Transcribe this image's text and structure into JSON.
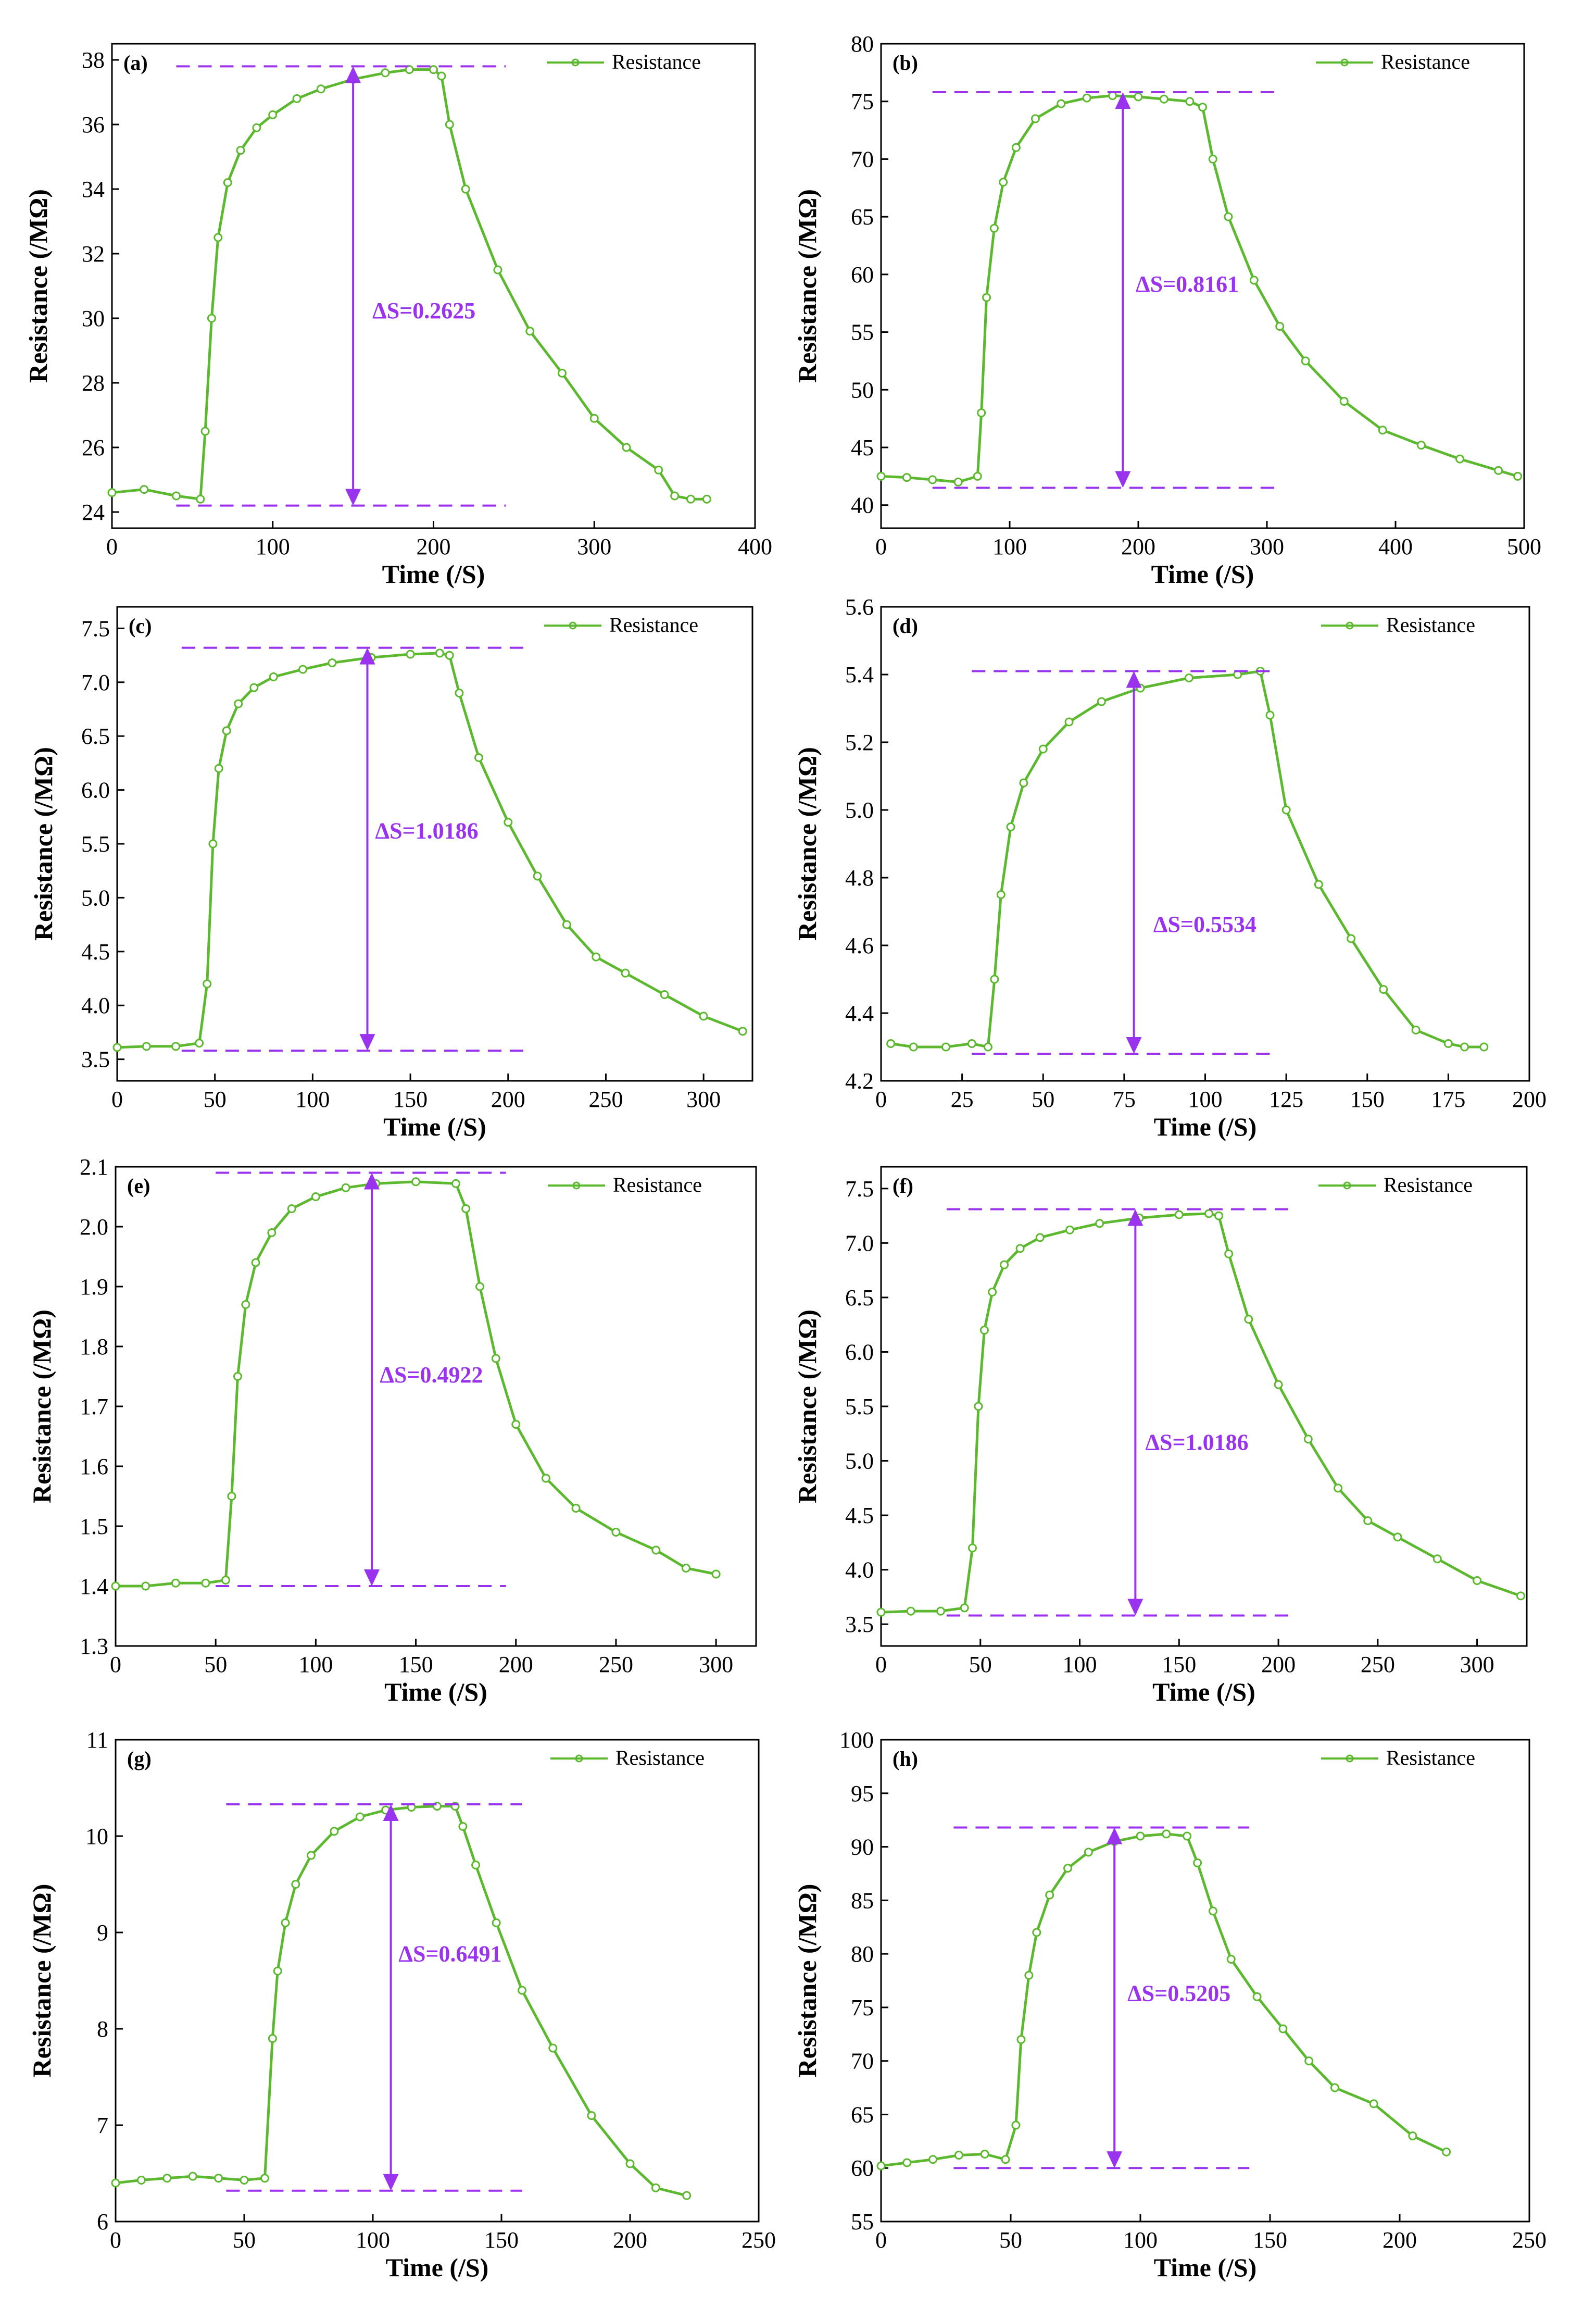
{
  "colors": {
    "series": "#5cb82e",
    "annotation": "#9a33ee",
    "axis": "#000000"
  },
  "legend_label": "Resistance",
  "chart_data": [
    {
      "type": "line",
      "panel_label": "(a)",
      "xlabel": "Time (/S)",
      "ylabel": "Resistance (/MΩ)",
      "xlim": [
        0,
        400
      ],
      "ylim": [
        23.5,
        38.5
      ],
      "xticks": [
        0,
        100,
        200,
        300,
        400
      ],
      "xtick_labels": [
        "0",
        "100",
        "200",
        "300",
        "400"
      ],
      "yticks": [
        24,
        26,
        28,
        30,
        32,
        34,
        36,
        38
      ],
      "ytick_labels": [
        "24",
        "26",
        "28",
        "30",
        "32",
        "34",
        "36",
        "38"
      ],
      "series": [
        {
          "name": "Resistance",
          "x": [
            0,
            20,
            40,
            55,
            58,
            62,
            66,
            72,
            80,
            90,
            100,
            115,
            130,
            150,
            170,
            185,
            200,
            205,
            210,
            220,
            240,
            260,
            280,
            300,
            320,
            340,
            350,
            360,
            370
          ],
          "y": [
            24.6,
            24.7,
            24.5,
            24.4,
            26.5,
            30.0,
            32.5,
            34.2,
            35.2,
            35.9,
            36.3,
            36.8,
            37.1,
            37.4,
            37.6,
            37.7,
            37.7,
            37.5,
            36.0,
            34.0,
            31.5,
            29.6,
            28.3,
            26.9,
            26.0,
            25.3,
            24.5,
            24.4,
            24.4
          ]
        }
      ],
      "annotation": {
        "label": "ΔS=0.2625",
        "upper_y": 37.8,
        "lower_y": 24.2,
        "arrow_x": 150,
        "dash_x": [
          40,
          245
        ],
        "label_x": 162,
        "label_y": 30.0
      }
    },
    {
      "type": "line",
      "panel_label": "(b)",
      "xlabel": "Time (/S)",
      "ylabel": "Resistance (/MΩ)",
      "xlim": [
        0,
        500
      ],
      "ylim": [
        38,
        80
      ],
      "xticks": [
        0,
        100,
        200,
        300,
        400,
        500
      ],
      "xtick_labels": [
        "0",
        "100",
        "200",
        "300",
        "400",
        "500"
      ],
      "yticks": [
        40,
        45,
        50,
        55,
        60,
        65,
        70,
        75,
        80
      ],
      "ytick_labels": [
        "40",
        "45",
        "50",
        "55",
        "60",
        "65",
        "70",
        "75",
        "80"
      ],
      "series": [
        {
          "name": "Resistance",
          "x": [
            0,
            20,
            40,
            60,
            75,
            78,
            82,
            88,
            95,
            105,
            120,
            140,
            160,
            180,
            200,
            220,
            240,
            250,
            258,
            270,
            290,
            310,
            330,
            360,
            390,
            420,
            450,
            480,
            495
          ],
          "y": [
            42.5,
            42.4,
            42.2,
            42.0,
            42.5,
            48.0,
            58.0,
            64.0,
            68.0,
            71.0,
            73.5,
            74.8,
            75.3,
            75.5,
            75.4,
            75.2,
            75.0,
            74.5,
            70.0,
            65.0,
            59.5,
            55.5,
            52.5,
            49.0,
            46.5,
            45.2,
            44.0,
            43.0,
            42.5
          ]
        }
      ],
      "annotation": {
        "label": "ΔS=0.8161",
        "upper_y": 75.8,
        "lower_y": 41.5,
        "arrow_x": 188,
        "dash_x": [
          40,
          308
        ],
        "label_x": 198,
        "label_y": 58.5
      }
    },
    {
      "type": "line",
      "panel_label": "(c)",
      "xlabel": "Time (/S)",
      "ylabel": "Resistance (/MΩ)",
      "xlim": [
        0,
        325
      ],
      "ylim": [
        3.3,
        7.7
      ],
      "xticks": [
        0,
        50,
        100,
        150,
        200,
        250,
        300
      ],
      "xtick_labels": [
        "0",
        "50",
        "100",
        "150",
        "200",
        "250",
        "300"
      ],
      "yticks": [
        3.5,
        4.0,
        4.5,
        5.0,
        5.5,
        6.0,
        6.5,
        7.0,
        7.5
      ],
      "ytick_labels": [
        "3.5",
        "4.0",
        "4.5",
        "5.0",
        "5.5",
        "6.0",
        "6.5",
        "7.0",
        "7.5"
      ],
      "series": [
        {
          "name": "Resistance",
          "x": [
            0,
            15,
            30,
            42,
            46,
            49,
            52,
            56,
            62,
            70,
            80,
            95,
            110,
            130,
            150,
            165,
            170,
            175,
            185,
            200,
            215,
            230,
            245,
            260,
            280,
            300,
            320
          ],
          "y": [
            3.61,
            3.62,
            3.62,
            3.65,
            4.2,
            5.5,
            6.2,
            6.55,
            6.8,
            6.95,
            7.05,
            7.12,
            7.18,
            7.23,
            7.26,
            7.27,
            7.25,
            6.9,
            6.3,
            5.7,
            5.2,
            4.75,
            4.45,
            4.3,
            4.1,
            3.9,
            3.76
          ]
        }
      ],
      "annotation": {
        "label": "ΔS=1.0186",
        "upper_y": 7.32,
        "lower_y": 3.58,
        "arrow_x": 128,
        "dash_x": [
          33,
          208
        ],
        "label_x": 132,
        "label_y": 5.55
      }
    },
    {
      "type": "line",
      "panel_label": "(d)",
      "xlabel": "Time (/S)",
      "ylabel": "Resistance (/MΩ)",
      "xlim": [
        0,
        200
      ],
      "ylim": [
        4.2,
        5.6
      ],
      "xticks": [
        0,
        25,
        50,
        75,
        100,
        125,
        150,
        175,
        200
      ],
      "xtick_labels": [
        "0",
        "25",
        "50",
        "75",
        "100",
        "125",
        "150",
        "175",
        "200"
      ],
      "yticks": [
        4.2,
        4.4,
        4.6,
        4.8,
        5.0,
        5.2,
        5.4,
        5.6
      ],
      "ytick_labels": [
        "4.2",
        "4.4",
        "4.6",
        "4.8",
        "5.0",
        "5.2",
        "5.4",
        "5.6"
      ],
      "series": [
        {
          "name": "Resistance",
          "x": [
            3,
            10,
            20,
            28,
            33,
            35,
            37,
            40,
            44,
            50,
            58,
            68,
            80,
            95,
            110,
            117,
            120,
            125,
            135,
            145,
            155,
            165,
            175,
            180,
            186
          ],
          "y": [
            4.31,
            4.3,
            4.3,
            4.31,
            4.3,
            4.5,
            4.75,
            4.95,
            5.08,
            5.18,
            5.26,
            5.32,
            5.36,
            5.39,
            5.4,
            5.41,
            5.28,
            5.0,
            4.78,
            4.62,
            4.47,
            4.35,
            4.31,
            4.3,
            4.3
          ]
        }
      ],
      "annotation": {
        "label": "ΔS=0.5534",
        "upper_y": 5.41,
        "lower_y": 4.28,
        "arrow_x": 78,
        "dash_x": [
          28,
          120
        ],
        "label_x": 84,
        "label_y": 4.64
      }
    },
    {
      "type": "line",
      "panel_label": "(e)",
      "xlabel": "Time (/S)",
      "ylabel": "Resistance (/MΩ)",
      "xlim": [
        0,
        320
      ],
      "ylim": [
        1.3,
        2.1
      ],
      "xticks": [
        0,
        50,
        100,
        150,
        200,
        250,
        300
      ],
      "xtick_labels": [
        "0",
        "50",
        "100",
        "150",
        "200",
        "250",
        "300"
      ],
      "yticks": [
        1.3,
        1.4,
        1.5,
        1.6,
        1.7,
        1.8,
        1.9,
        2.0,
        2.1
      ],
      "ytick_labels": [
        "1.3",
        "1.4",
        "1.5",
        "1.6",
        "1.7",
        "1.8",
        "1.9",
        "2.0",
        "2.1"
      ],
      "series": [
        {
          "name": "Resistance",
          "x": [
            0,
            15,
            30,
            45,
            55,
            58,
            61,
            65,
            70,
            78,
            88,
            100,
            115,
            130,
            150,
            170,
            175,
            182,
            190,
            200,
            215,
            230,
            250,
            270,
            285,
            300
          ],
          "y": [
            1.4,
            1.4,
            1.405,
            1.405,
            1.41,
            1.55,
            1.75,
            1.87,
            1.94,
            1.99,
            2.03,
            2.05,
            2.065,
            2.072,
            2.075,
            2.072,
            2.03,
            1.9,
            1.78,
            1.67,
            1.58,
            1.53,
            1.49,
            1.46,
            1.43,
            1.42
          ]
        }
      ],
      "annotation": {
        "label": "ΔS=0.4922",
        "upper_y": 2.09,
        "lower_y": 1.4,
        "arrow_x": 128,
        "dash_x": [
          50,
          195
        ],
        "label_x": 132,
        "label_y": 1.74
      }
    },
    {
      "type": "line",
      "panel_label": "(f)",
      "xlabel": "Time (/S)",
      "ylabel": "Resistance (/MΩ)",
      "xlim": [
        0,
        325
      ],
      "ylim": [
        3.3,
        7.7
      ],
      "xticks": [
        0,
        50,
        100,
        150,
        200,
        250,
        300
      ],
      "xtick_labels": [
        "0",
        "50",
        "100",
        "150",
        "200",
        "250",
        "300"
      ],
      "yticks": [
        3.5,
        4.0,
        4.5,
        5.0,
        5.5,
        6.0,
        6.5,
        7.0,
        7.5
      ],
      "ytick_labels": [
        "3.5",
        "4.0",
        "4.5",
        "5.0",
        "5.5",
        "6.0",
        "6.5",
        "7.0",
        "7.5"
      ],
      "series": [
        {
          "name": "Resistance",
          "x": [
            0,
            15,
            30,
            42,
            46,
            49,
            52,
            56,
            62,
            70,
            80,
            95,
            110,
            130,
            150,
            165,
            170,
            175,
            185,
            200,
            215,
            230,
            245,
            260,
            280,
            300,
            322
          ],
          "y": [
            3.61,
            3.62,
            3.62,
            3.65,
            4.2,
            5.5,
            6.2,
            6.55,
            6.8,
            6.95,
            7.05,
            7.12,
            7.18,
            7.23,
            7.26,
            7.27,
            7.25,
            6.9,
            6.3,
            5.7,
            5.2,
            4.75,
            4.45,
            4.3,
            4.1,
            3.9,
            3.76
          ]
        }
      ],
      "annotation": {
        "label": "ΔS=1.0186",
        "upper_y": 7.31,
        "lower_y": 3.58,
        "arrow_x": 128,
        "dash_x": [
          33,
          208
        ],
        "label_x": 133,
        "label_y": 5.1
      }
    },
    {
      "type": "line",
      "panel_label": "(g)",
      "xlabel": "Time (/S)",
      "ylabel": "Resistance (/MΩ)",
      "xlim": [
        0,
        250
      ],
      "ylim": [
        6,
        11
      ],
      "xticks": [
        0,
        50,
        100,
        150,
        200,
        250
      ],
      "xtick_labels": [
        "0",
        "50",
        "100",
        "150",
        "200",
        "250"
      ],
      "yticks": [
        6,
        7,
        8,
        9,
        10,
        11
      ],
      "ytick_labels": [
        "6",
        "7",
        "8",
        "9",
        "10",
        "11"
      ],
      "series": [
        {
          "name": "Resistance",
          "x": [
            0,
            10,
            20,
            30,
            40,
            50,
            58,
            61,
            63,
            66,
            70,
            76,
            85,
            95,
            105,
            115,
            125,
            132,
            135,
            140,
            148,
            158,
            170,
            185,
            200,
            210,
            222
          ],
          "y": [
            6.4,
            6.43,
            6.45,
            6.47,
            6.45,
            6.43,
            6.45,
            7.9,
            8.6,
            9.1,
            9.5,
            9.8,
            10.05,
            10.2,
            10.27,
            10.3,
            10.31,
            10.31,
            10.1,
            9.7,
            9.1,
            8.4,
            7.8,
            7.1,
            6.6,
            6.35,
            6.27
          ]
        }
      ],
      "annotation": {
        "label": "ΔS=0.6491",
        "upper_y": 10.33,
        "lower_y": 6.32,
        "arrow_x": 107,
        "dash_x": [
          43,
          158
        ],
        "label_x": 110,
        "label_y": 8.7
      }
    },
    {
      "type": "line",
      "panel_label": "(h)",
      "xlabel": "Time (/S)",
      "ylabel": "Resistance (/MΩ)",
      "xlim": [
        0,
        250
      ],
      "ylim": [
        55,
        100
      ],
      "xticks": [
        0,
        50,
        100,
        150,
        200,
        250
      ],
      "xtick_labels": [
        "0",
        "50",
        "100",
        "150",
        "200",
        "250"
      ],
      "yticks": [
        55,
        60,
        65,
        70,
        75,
        80,
        85,
        90,
        95,
        100
      ],
      "ytick_labels": [
        "55",
        "60",
        "65",
        "70",
        "75",
        "80",
        "85",
        "90",
        "95",
        "100"
      ],
      "series": [
        {
          "name": "Resistance",
          "x": [
            0,
            10,
            20,
            30,
            40,
            48,
            52,
            54,
            57,
            60,
            65,
            72,
            80,
            90,
            100,
            110,
            118,
            122,
            128,
            135,
            145,
            155,
            165,
            175,
            190,
            205,
            218
          ],
          "y": [
            60.2,
            60.5,
            60.8,
            61.2,
            61.3,
            60.8,
            64.0,
            72.0,
            78.0,
            82.0,
            85.5,
            88.0,
            89.5,
            90.5,
            91.0,
            91.2,
            91.0,
            88.5,
            84.0,
            79.5,
            76.0,
            73.0,
            70.0,
            67.5,
            66.0,
            63.0,
            61.5
          ]
        }
      ],
      "annotation": {
        "label": "ΔS=0.5205",
        "upper_y": 91.8,
        "lower_y": 60.0,
        "arrow_x": 90,
        "dash_x": [
          28,
          142
        ],
        "label_x": 95,
        "label_y": 75.6
      }
    }
  ]
}
